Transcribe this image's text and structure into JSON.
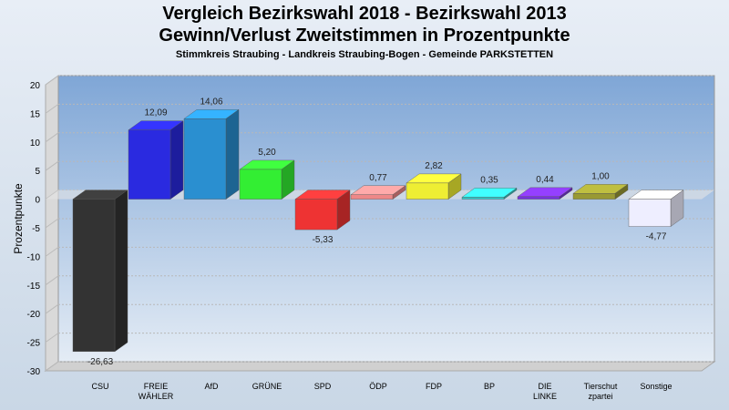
{
  "chart_data": {
    "type": "bar",
    "title": "Vergleich Bezirkswahl 2018 - Bezirkswahl 2013",
    "subtitle": "Gewinn/Verlust Zweitstimmen in Prozentpunkte",
    "subsubtitle": "Stimmkreis Straubing - Landkreis Straubing-Bogen - Gemeinde PARKSTETTEN",
    "xlabel": "",
    "ylabel": "Prozentpunkte",
    "ylim": [
      -30,
      20
    ],
    "yticks": [
      20,
      15,
      10,
      5,
      0,
      -5,
      -10,
      -15,
      -20,
      -25,
      -30
    ],
    "grid": true,
    "categories": [
      [
        "CSU"
      ],
      [
        "FREIE",
        "WÄHLER"
      ],
      [
        "AfD"
      ],
      [
        "GRÜNE"
      ],
      [
        "SPD"
      ],
      [
        "ÖDP"
      ],
      [
        "FDP"
      ],
      [
        "BP"
      ],
      [
        "DIE",
        "LINKE"
      ],
      [
        "Tierschut",
        "zpartei"
      ],
      [
        "Sonstige"
      ]
    ],
    "values": [
      -26.63,
      12.09,
      14.06,
      5.2,
      -5.33,
      0.77,
      2.82,
      0.35,
      0.44,
      1.0,
      -4.77
    ],
    "value_labels": [
      "-26,63",
      "12,09",
      "14,06",
      "5,20",
      "-5,33",
      "0,77",
      "2,82",
      "0,35",
      "0,44",
      "1,00",
      "-4,77"
    ],
    "colors": [
      "#333333",
      "#2a2ae0",
      "#2a8fd0",
      "#33ee33",
      "#ee3333",
      "#ee8888",
      "#eeee33",
      "#33cccc",
      "#7733dd",
      "#999933",
      "#eeeeff"
    ]
  }
}
